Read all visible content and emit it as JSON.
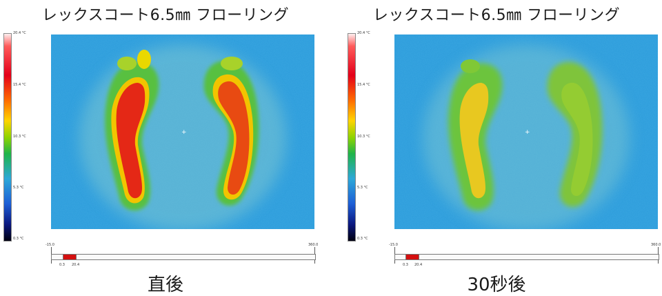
{
  "panels": [
    {
      "title": "レックスコート6.5㎜ フローリング",
      "caption": "直後",
      "scale": {
        "max": "20.4 °C",
        "t2": "15.4 °C",
        "t3": "10.3 °C",
        "t4": "5.3 °C",
        "min": "0.3 °C"
      },
      "range": {
        "axis_min": "-15.0",
        "axis_max": "360.0",
        "low": "0.3",
        "high": "20.4",
        "bar_color": "#d41010"
      },
      "footprint_state": "hot"
    },
    {
      "title": "レックスコート6.5㎜ フローリング",
      "caption": "30秒後",
      "scale": {
        "max": "20.4 °C",
        "t2": "15.4 °C",
        "t3": "10.3 °C",
        "t4": "5.3 °C",
        "min": "0.3 °C"
      },
      "range": {
        "axis_min": "-15.0",
        "axis_max": "360.0",
        "low": "0.3",
        "high": "20.4",
        "bar_color": "#d41010"
      },
      "footprint_state": "cooled"
    }
  ]
}
